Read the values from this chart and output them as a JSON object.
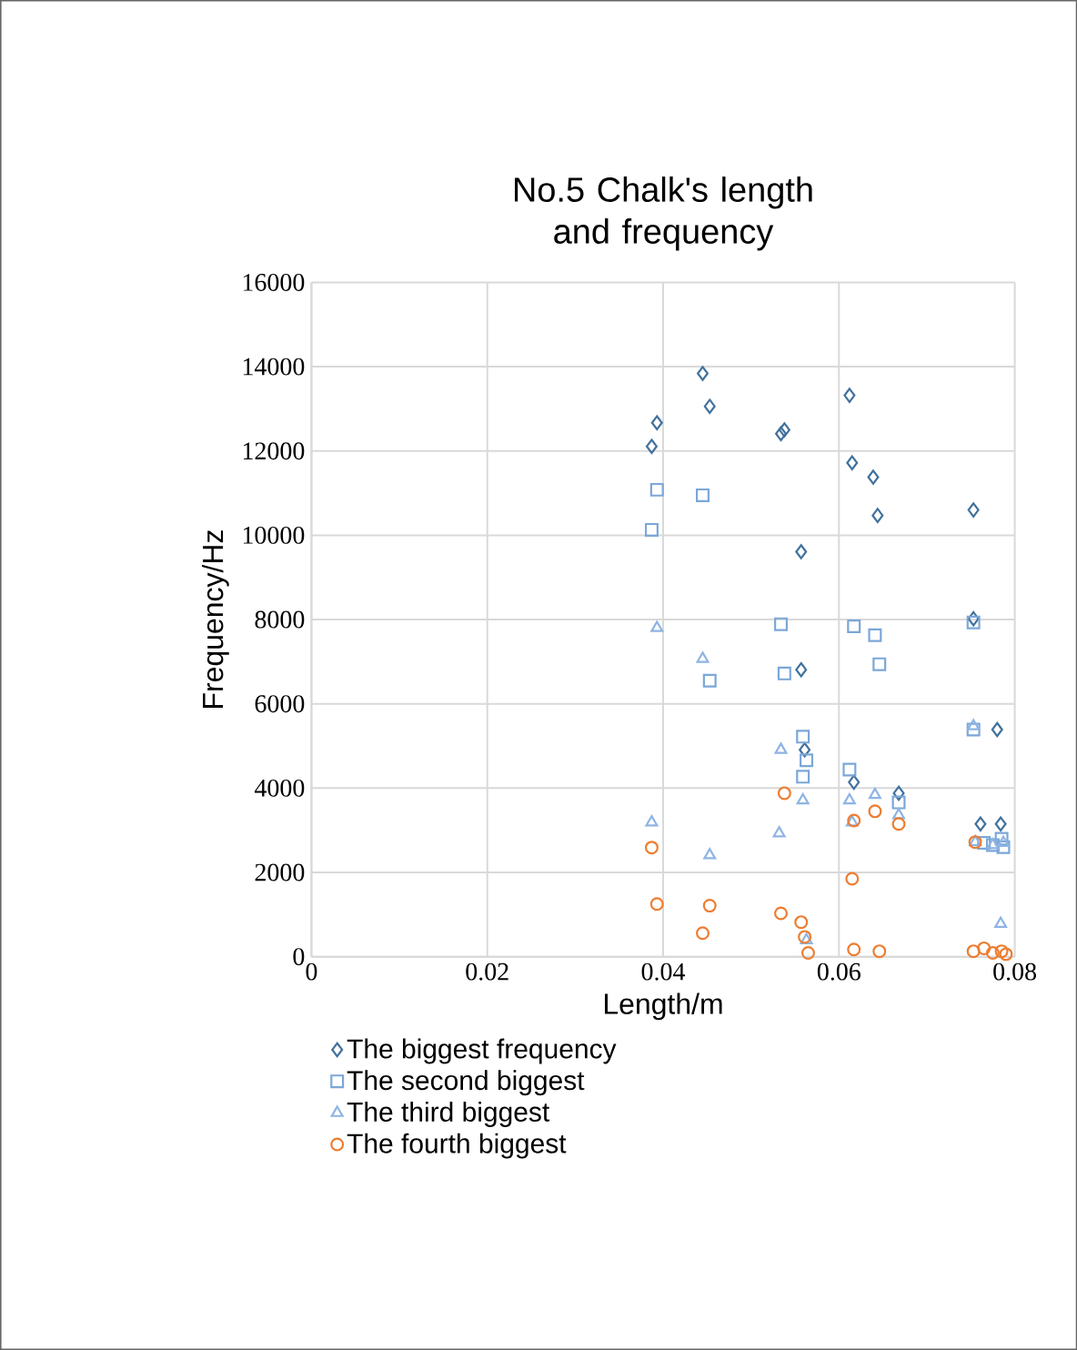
{
  "chart_data": {
    "type": "scatter",
    "title": "No.5 Chalk's length and frequency",
    "xlabel": "Length/m",
    "ylabel": "Frequency/Hz",
    "xlim": [
      0,
      0.08
    ],
    "xticks": [
      0,
      0.02,
      0.04,
      0.06,
      0.08
    ],
    "ylim": [
      0,
      16000
    ],
    "yticks": [
      0,
      2000,
      4000,
      6000,
      8000,
      10000,
      12000,
      14000,
      16000
    ],
    "grid": true,
    "legend": "bottom",
    "series": [
      {
        "name": "The biggest frequency",
        "color": "#41719c",
        "marker": "diamond",
        "x": [
          0.0387,
          0.0393,
          0.0445,
          0.0453,
          0.0534,
          0.0538,
          0.0557,
          0.0557,
          0.0561,
          0.0612,
          0.0615,
          0.0639,
          0.0644,
          0.0617,
          0.0668,
          0.0753,
          0.0753,
          0.078,
          0.0761,
          0.0784
        ],
        "values": [
          12110,
          12670,
          13840,
          13060,
          12410,
          12500,
          9610,
          6810,
          4910,
          13320,
          11720,
          11380,
          10470,
          4140,
          3880,
          10600,
          8020,
          5390,
          3150,
          3150
        ]
      },
      {
        "name": "The second biggest",
        "color": "#7ba7d8",
        "marker": "square",
        "x": [
          0.0393,
          0.0445,
          0.0387,
          0.0534,
          0.0617,
          0.0641,
          0.0753,
          0.0453,
          0.0538,
          0.0646,
          0.0559,
          0.0563,
          0.0559,
          0.0612,
          0.0668,
          0.0753,
          0.0765,
          0.0775,
          0.0785,
          0.0787
        ],
        "values": [
          11080,
          10950,
          10130,
          7890,
          7840,
          7630,
          7930,
          6550,
          6720,
          6940,
          5220,
          4660,
          4270,
          4440,
          3660,
          5390,
          2700,
          2650,
          2800,
          2600
        ]
      },
      {
        "name": "The third biggest",
        "color": "#8eb4e3",
        "marker": "triangle",
        "x": [
          0.0387,
          0.0393,
          0.0445,
          0.0453,
          0.0534,
          0.0532,
          0.0559,
          0.0563,
          0.0612,
          0.0615,
          0.0641,
          0.0668,
          0.0753,
          0.0755,
          0.0784,
          0.0775,
          0.0787
        ],
        "values": [
          3190,
          7800,
          7070,
          2410,
          4910,
          2930,
          3710,
          390,
          3710,
          3190,
          3840,
          3360,
          5470,
          2720,
          780,
          2650,
          2700
        ]
      },
      {
        "name": "The fourth biggest",
        "color": "#ed7d31",
        "marker": "circle",
        "x": [
          0.0387,
          0.0393,
          0.0453,
          0.0445,
          0.0534,
          0.0538,
          0.0557,
          0.0561,
          0.0565,
          0.0615,
          0.0617,
          0.0641,
          0.0668,
          0.0617,
          0.0646,
          0.0755,
          0.0753,
          0.0765,
          0.0775,
          0.0785,
          0.079
        ],
        "values": [
          2590,
          1250,
          1210,
          560,
          1030,
          3880,
          820,
          470,
          90,
          1850,
          3230,
          3450,
          3150,
          170,
          130,
          2720,
          130,
          200,
          90,
          130,
          60
        ]
      }
    ]
  }
}
